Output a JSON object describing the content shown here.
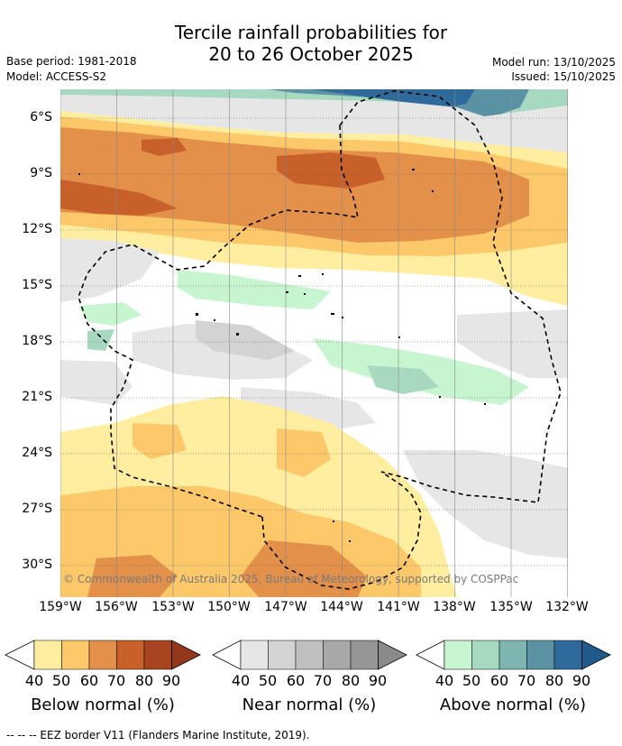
{
  "title": {
    "line1": "Tercile rainfall probabilities for",
    "line2": "20 to 26 October 2025"
  },
  "meta": {
    "base_period": "Base period: 1981-2018",
    "model": "Model: ACCESS-S2",
    "model_run": "Model run: 13/10/2025",
    "issued": "Issued: 15/10/2025"
  },
  "map": {
    "lat_labels": [
      "6°S",
      "9°S",
      "12°S",
      "15°S",
      "18°S",
      "21°S",
      "24°S",
      "27°S",
      "30°S"
    ],
    "lon_labels": [
      "159°W",
      "156°W",
      "153°W",
      "150°W",
      "147°W",
      "144°W",
      "141°W",
      "138°W",
      "135°W",
      "132°W"
    ],
    "copyright": "© Commonwealth of Australia 2025, Bureau of Meteorology, supported by COSPPac",
    "colors": {
      "below": [
        "#ffeda0",
        "#fdc86a",
        "#e3904a",
        "#c8602a",
        "#a8441f"
      ],
      "near": [
        "#e6e6e6",
        "#d3d3d3",
        "#c0c0c0",
        "#a8a8a8",
        "#969696"
      ],
      "above": [
        "#c7f5cf",
        "#a7d9c0",
        "#7fb5b0",
        "#5b92a3",
        "#2e6a9b"
      ]
    }
  },
  "legends": [
    {
      "id": "below",
      "title": "Below normal (%)",
      "ticks": [
        "40",
        "50",
        "60",
        "70",
        "80",
        "90"
      ],
      "colors": [
        "#ffeda0",
        "#fdc86a",
        "#e3904a",
        "#c8602a",
        "#a8441f"
      ],
      "arrow": "#93381a"
    },
    {
      "id": "near",
      "title": "Near normal (%)",
      "ticks": [
        "40",
        "50",
        "60",
        "70",
        "80",
        "90"
      ],
      "colors": [
        "#e6e6e6",
        "#d3d3d3",
        "#c0c0c0",
        "#a8a8a8",
        "#969696"
      ],
      "arrow": "#8a8a8a"
    },
    {
      "id": "above",
      "title": "Above normal (%)",
      "ticks": [
        "40",
        "50",
        "60",
        "70",
        "80",
        "90"
      ],
      "colors": [
        "#c7f5cf",
        "#a7d9c0",
        "#7fb5b0",
        "#5b92a3",
        "#2e6a9b"
      ],
      "arrow": "#1f5a8a"
    }
  ],
  "footer": {
    "eez": "--  --  -- EEZ border V11 (Flanders Marine Institute, 2019)."
  }
}
